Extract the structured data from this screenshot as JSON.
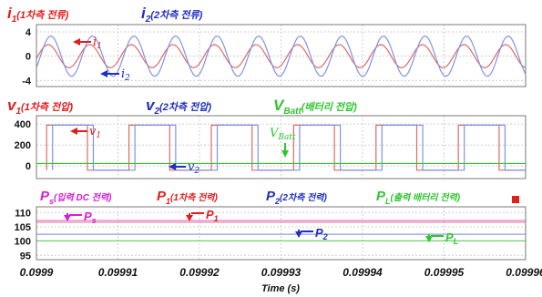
{
  "chart_data": [
    {
      "type": "line",
      "panel": "current",
      "title_items": [
        {
          "symbol": "i",
          "sub": "1",
          "label": "(1차측 전류)",
          "color": "#e21d1d"
        },
        {
          "symbol": "i",
          "sub": "2",
          "label": "(2차측 전류)",
          "color": "#1f2fbf"
        }
      ],
      "yticks": [
        "4",
        "0",
        "-4"
      ],
      "ytick_values": [
        4,
        0,
        -4
      ],
      "ylim": [
        -5,
        5.2
      ],
      "xlim": [
        0.0999,
        0.09996
      ],
      "grid": true,
      "series": [
        {
          "name": "i1",
          "color": "#e06868",
          "shape": "sine",
          "amplitude": 1.9,
          "period": 5.1e-06,
          "phase": 0.2
        },
        {
          "name": "i2",
          "color": "#7f93e8",
          "shape": "sine",
          "amplitude": 3.3,
          "period": 5.1e-06,
          "phase": 0.6
        }
      ],
      "annotations": [
        {
          "label": "i",
          "sub": "1",
          "color": "#e21d1d"
        },
        {
          "label": "i",
          "sub": "2",
          "color": "#1f2fbf"
        }
      ]
    },
    {
      "type": "line",
      "panel": "voltage",
      "title_items": [
        {
          "symbol": "v",
          "sub": "1",
          "label": "(1차측 전압)",
          "color": "#e21d1d"
        },
        {
          "symbol": "v",
          "sub": "2",
          "label": "(2차측 전압)",
          "color": "#1f2fbf"
        },
        {
          "symbol": "V",
          "sub": "Batt",
          "label": "(배터리 전압)",
          "color": "#2ec62e"
        }
      ],
      "yticks": [
        "400",
        "200",
        "0"
      ],
      "ytick_values": [
        400,
        200,
        0
      ],
      "ylim": [
        -120,
        480
      ],
      "xlim": [
        0.0999,
        0.09996
      ],
      "grid": true,
      "series": [
        {
          "name": "v1",
          "color": "#e06868",
          "shape": "square",
          "high": 390,
          "low": -40,
          "period": 1.01e-05,
          "rise": 0.09990125,
          "duty": 0.495
        },
        {
          "name": "v2",
          "color": "#7f93e8",
          "shape": "square",
          "high": 390,
          "low": -40,
          "period": 1.01e-05,
          "rise": 0.09990198,
          "duty": 0.495
        },
        {
          "name": "VBatt",
          "color": "#2ec62e",
          "shape": "flat",
          "value": 24
        }
      ],
      "annotations": [
        {
          "label": "v",
          "sub": "1",
          "color": "#e21d1d"
        },
        {
          "label": "V",
          "sub": "Batt",
          "color": "#2ec62e"
        },
        {
          "label": "v",
          "sub": "2",
          "color": "#1f2fbf"
        }
      ]
    },
    {
      "type": "line",
      "panel": "power",
      "title_items": [
        {
          "symbol": "P",
          "sub": "s",
          "label": "(입력 DC 전력)",
          "color": "#d81bd8"
        },
        {
          "symbol": "P",
          "sub": "1",
          "label": "(1차측 전력)",
          "color": "#e21d1d"
        },
        {
          "symbol": "P",
          "sub": "2",
          "label": "(2차측 전력)",
          "color": "#1f2fbf"
        },
        {
          "symbol": "P",
          "sub": "L",
          "label": "(출력 배터리 전력)",
          "color": "#2ec62e"
        }
      ],
      "yticks": [
        "110",
        "105",
        "100",
        "95"
      ],
      "ytick_values": [
        110,
        105,
        100,
        95
      ],
      "ylim": [
        93.5,
        112
      ],
      "xlim": [
        0.0999,
        0.09996
      ],
      "xticks": [
        "0.0999",
        "0.09991",
        "0.09992",
        "0.09993",
        "0.09994",
        "0.09995",
        "0.09996"
      ],
      "xtick_values": [
        0.0999,
        0.09991,
        0.09992,
        0.09993,
        0.09994,
        0.09995,
        0.09996
      ],
      "xlabel": "Time (s)",
      "grid": true,
      "series": [
        {
          "name": "Ps",
          "color": "#e070e0",
          "shape": "flat",
          "value": 107.2
        },
        {
          "name": "P1",
          "color": "#e88080",
          "shape": "flat",
          "value": 106.6
        },
        {
          "name": "P2",
          "color": "#8f9fe8",
          "shape": "flat",
          "value": 102.4
        },
        {
          "name": "PL",
          "color": "#60d060",
          "shape": "flat",
          "value": 100.1
        }
      ],
      "annotations": [
        {
          "label": "P",
          "sub": "s",
          "color": "#d81bd8"
        },
        {
          "label": "P",
          "sub": "1",
          "color": "#e21d1d"
        },
        {
          "label": "P",
          "sub": "2",
          "color": "#1f2fbf"
        },
        {
          "label": "P",
          "sub": "L",
          "color": "#2ec62e"
        }
      ]
    }
  ]
}
